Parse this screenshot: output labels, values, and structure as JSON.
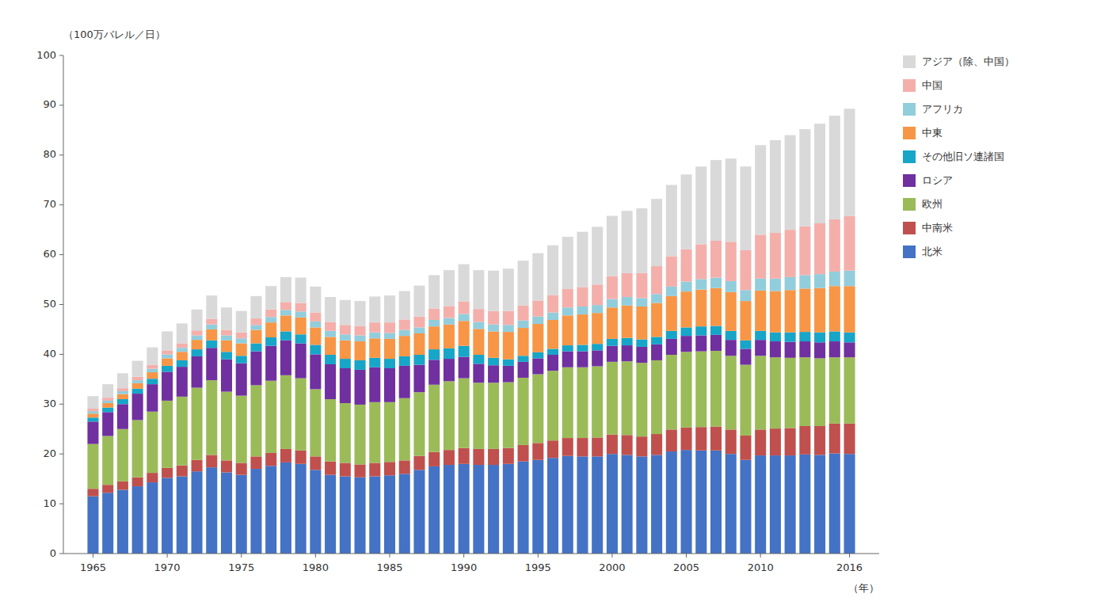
{
  "chart_data": {
    "type": "bar",
    "stacked": true,
    "grid": false,
    "legend": "right",
    "xlabel": "（年）",
    "ylabel": "（100万バレル／日）",
    "x": [
      1965,
      1966,
      1967,
      1968,
      1969,
      1970,
      1971,
      1972,
      1973,
      1974,
      1975,
      1976,
      1977,
      1978,
      1979,
      1980,
      1981,
      1982,
      1983,
      1984,
      1985,
      1986,
      1987,
      1988,
      1989,
      1990,
      1991,
      1992,
      1993,
      1994,
      1995,
      1996,
      1997,
      1998,
      1999,
      2000,
      2001,
      2002,
      2003,
      2004,
      2005,
      2006,
      2007,
      2008,
      2009,
      2010,
      2011,
      2012,
      2013,
      2014,
      2015,
      2016
    ],
    "xlim": [
      1963,
      2018
    ],
    "xticks": [
      1965,
      1970,
      1975,
      1980,
      1985,
      1990,
      1995,
      2000,
      2005,
      2010,
      2016
    ],
    "ylim": [
      0,
      100
    ],
    "yticks": [
      0,
      10,
      20,
      30,
      40,
      50,
      60,
      70,
      80,
      90,
      100
    ],
    "series": [
      {
        "name": "北米",
        "color": "#4472C4",
        "values": [
          11.5,
          12.2,
          12.8,
          13.5,
          14.3,
          15.2,
          15.5,
          16.5,
          17.3,
          16.3,
          15.8,
          17.0,
          17.6,
          18.3,
          18.0,
          16.8,
          15.8,
          15.5,
          15.3,
          15.5,
          15.7,
          16.0,
          16.8,
          17.5,
          17.8,
          18.0,
          17.8,
          17.8,
          18.0,
          18.5,
          18.8,
          19.2,
          19.6,
          19.5,
          19.5,
          20.0,
          19.8,
          19.5,
          19.8,
          20.5,
          20.8,
          20.7,
          20.7,
          20.0,
          18.8,
          19.7,
          19.7,
          19.7,
          19.9,
          19.8,
          20.1,
          20.0
        ]
      },
      {
        "name": "中南米",
        "color": "#C0504D",
        "values": [
          1.5,
          1.6,
          1.7,
          1.8,
          1.9,
          2.0,
          2.2,
          2.3,
          2.5,
          2.4,
          2.4,
          2.5,
          2.6,
          2.7,
          2.7,
          2.7,
          2.7,
          2.7,
          2.6,
          2.7,
          2.7,
          2.7,
          2.8,
          2.9,
          3.0,
          3.2,
          3.2,
          3.2,
          3.2,
          3.3,
          3.4,
          3.5,
          3.6,
          3.7,
          3.8,
          3.9,
          4.0,
          4.0,
          4.2,
          4.4,
          4.5,
          4.7,
          4.8,
          4.9,
          4.9,
          5.2,
          5.4,
          5.5,
          5.7,
          5.8,
          6.0,
          6.1
        ]
      },
      {
        "name": "欧州",
        "color": "#9BBB59",
        "values": [
          9.0,
          9.8,
          10.5,
          11.5,
          12.3,
          13.5,
          13.8,
          14.5,
          15.0,
          13.8,
          13.5,
          14.3,
          14.5,
          14.8,
          14.5,
          13.5,
          12.5,
          12.0,
          12.0,
          12.2,
          12.0,
          12.5,
          12.8,
          13.5,
          13.8,
          14.0,
          13.3,
          13.3,
          13.2,
          13.5,
          13.8,
          14.0,
          14.2,
          14.2,
          14.3,
          14.6,
          14.8,
          14.8,
          14.8,
          15.0,
          15.2,
          15.2,
          15.2,
          14.8,
          14.2,
          14.8,
          14.3,
          14.1,
          13.8,
          13.6,
          13.3,
          13.3
        ]
      },
      {
        "name": "ロシア",
        "color": "#7030A0",
        "values": [
          4.5,
          4.8,
          5.0,
          5.3,
          5.5,
          5.8,
          6.0,
          6.3,
          6.5,
          6.5,
          6.5,
          6.8,
          7.0,
          7.0,
          7.0,
          7.0,
          7.0,
          7.0,
          7.0,
          7.0,
          6.8,
          6.5,
          5.5,
          5.0,
          4.5,
          4.3,
          3.8,
          3.5,
          3.3,
          3.2,
          3.2,
          3.2,
          3.2,
          3.2,
          3.2,
          3.2,
          3.2,
          3.2,
          3.2,
          3.2,
          3.2,
          3.2,
          3.2,
          3.2,
          3.2,
          3.2,
          3.2,
          3.2,
          3.2,
          3.2,
          3.2,
          3.0
        ]
      },
      {
        "name": "その他旧ソ連諸国",
        "color": "#17A5C8",
        "values": [
          0.8,
          0.9,
          1.0,
          1.0,
          1.1,
          1.2,
          1.3,
          1.4,
          1.5,
          1.5,
          1.5,
          1.6,
          1.7,
          1.8,
          1.8,
          1.9,
          1.9,
          1.9,
          1.9,
          1.9,
          1.9,
          1.9,
          2.0,
          2.1,
          2.1,
          2.2,
          1.8,
          1.5,
          1.3,
          1.2,
          1.2,
          1.2,
          1.2,
          1.3,
          1.3,
          1.4,
          1.5,
          1.5,
          1.5,
          1.6,
          1.7,
          1.8,
          1.8,
          1.8,
          1.7,
          1.8,
          1.8,
          1.9,
          1.9,
          2.0,
          2.0,
          2.0
        ]
      },
      {
        "name": "中東",
        "color": "#F79646",
        "values": [
          0.8,
          0.9,
          1.0,
          1.1,
          1.3,
          1.5,
          1.7,
          1.9,
          2.2,
          2.3,
          2.5,
          2.7,
          3.0,
          3.2,
          3.4,
          3.5,
          3.6,
          3.7,
          3.8,
          3.9,
          4.0,
          4.1,
          4.3,
          4.6,
          4.8,
          5.0,
          5.2,
          5.3,
          5.5,
          5.6,
          5.7,
          5.8,
          6.0,
          6.1,
          6.2,
          6.3,
          6.5,
          6.6,
          6.8,
          7.0,
          7.2,
          7.4,
          7.6,
          7.8,
          7.9,
          8.1,
          8.3,
          8.5,
          8.7,
          8.9,
          9.1,
          9.3
        ]
      },
      {
        "name": "アフリカ",
        "color": "#92CDDC",
        "values": [
          0.5,
          0.5,
          0.6,
          0.6,
          0.7,
          0.8,
          0.8,
          0.9,
          1.0,
          1.0,
          1.0,
          1.0,
          1.1,
          1.1,
          1.2,
          1.2,
          1.2,
          1.2,
          1.2,
          1.2,
          1.2,
          1.2,
          1.2,
          1.3,
          1.3,
          1.4,
          1.4,
          1.4,
          1.4,
          1.5,
          1.5,
          1.5,
          1.6,
          1.6,
          1.6,
          1.7,
          1.7,
          1.7,
          1.8,
          1.9,
          2.0,
          2.1,
          2.1,
          2.2,
          2.2,
          2.4,
          2.5,
          2.6,
          2.7,
          2.8,
          2.9,
          3.1
        ]
      },
      {
        "name": "中国",
        "color": "#F4AFAB",
        "values": [
          0.5,
          0.6,
          0.6,
          0.7,
          0.8,
          0.8,
          0.9,
          1.0,
          1.1,
          1.1,
          1.2,
          1.3,
          1.5,
          1.6,
          1.7,
          1.8,
          1.8,
          1.9,
          1.9,
          2.0,
          2.1,
          2.1,
          2.2,
          2.3,
          2.4,
          2.5,
          2.6,
          2.7,
          2.8,
          3.0,
          3.2,
          3.5,
          3.7,
          3.9,
          4.1,
          4.6,
          4.8,
          5.0,
          5.6,
          6.1,
          6.5,
          7.0,
          7.4,
          7.9,
          8.0,
          8.8,
          9.2,
          9.5,
          9.8,
          10.2,
          10.5,
          11.0
        ]
      },
      {
        "name": "アジア（除、中国）",
        "color": "#D9D9D9",
        "values": [
          2.5,
          2.7,
          3.0,
          3.2,
          3.5,
          3.8,
          4.0,
          4.2,
          4.7,
          4.5,
          4.3,
          4.5,
          4.7,
          5.0,
          5.1,
          5.2,
          5.0,
          5.0,
          5.0,
          5.2,
          5.4,
          5.7,
          6.2,
          6.7,
          7.2,
          7.5,
          7.8,
          8.1,
          8.5,
          9.0,
          9.5,
          10.0,
          10.5,
          11.1,
          11.6,
          12.1,
          12.5,
          13.0,
          13.5,
          14.3,
          15.0,
          15.6,
          16.2,
          16.7,
          16.8,
          18.0,
          18.6,
          19.0,
          19.5,
          20.0,
          20.8,
          21.5
        ]
      }
    ]
  }
}
